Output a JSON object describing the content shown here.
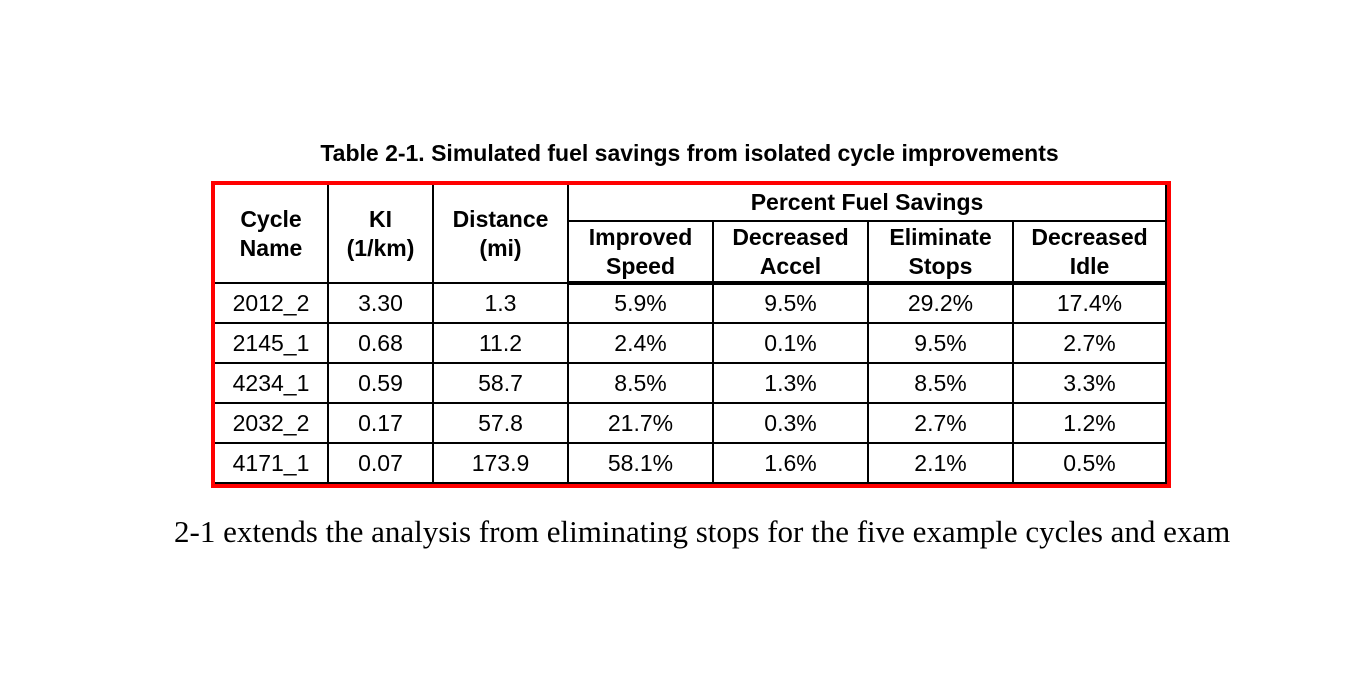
{
  "title": "Table 2-1. Simulated fuel savings from isolated cycle improvements",
  "table": {
    "border_color": "#ff0000",
    "grid_color": "#000000",
    "col_headers": [
      {
        "label": "Cycle\nName"
      },
      {
        "label": "KI\n(1/km)"
      },
      {
        "label": "Distance\n(mi)"
      }
    ],
    "group_header": "Percent Fuel Savings",
    "sub_headers": [
      "Improved\nSpeed",
      "Decreased\nAccel",
      "Eliminate\nStops",
      "Decreased\nIdle"
    ],
    "rows": [
      [
        "2012_2",
        "3.30",
        "1.3",
        "5.9%",
        "9.5%",
        "29.2%",
        "17.4%"
      ],
      [
        "2145_1",
        "0.68",
        "11.2",
        "2.4%",
        "0.1%",
        "9.5%",
        "2.7%"
      ],
      [
        "4234_1",
        "0.59",
        "58.7",
        "8.5%",
        "1.3%",
        "8.5%",
        "3.3%"
      ],
      [
        "2032_2",
        "0.17",
        "57.8",
        "21.7%",
        "0.3%",
        "2.7%",
        "1.2%"
      ],
      [
        "4171_1",
        "0.07",
        "173.9",
        "58.1%",
        "1.6%",
        "2.1%",
        "0.5%"
      ]
    ]
  },
  "caption": "2-1 extends the analysis from eliminating stops for the five example cycles and exam"
}
